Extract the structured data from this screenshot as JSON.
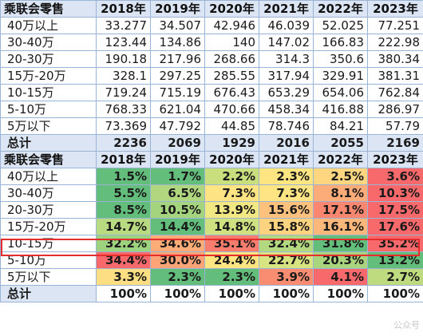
{
  "table1": {
    "header": [
      "乘联会零售",
      "2018年",
      "2019年",
      "2020年",
      "2021年",
      "2022年",
      "2023年"
    ],
    "rows": [
      {
        "label": "40万以上",
        "values": [
          "33.277",
          "34.507",
          "42.946",
          "46.039",
          "52.025",
          "77.251"
        ]
      },
      {
        "label": "30-40万",
        "values": [
          "123.44",
          "134.86",
          "140",
          "147.02",
          "166.83",
          "222.98"
        ]
      },
      {
        "label": "20-30万",
        "values": [
          "190.18",
          "217.96",
          "268.66",
          "314.3",
          "350.6",
          "380.34"
        ]
      },
      {
        "label": "15万-20万",
        "values": [
          "328.1",
          "297.25",
          "285.55",
          "317.94",
          "329.91",
          "381.31"
        ]
      },
      {
        "label": "10-15万",
        "values": [
          "719.24",
          "715.19",
          "676.43",
          "653.29",
          "654.06",
          "762.84"
        ]
      },
      {
        "label": "5-10万",
        "values": [
          "768.33",
          "621.04",
          "470.66",
          "458.34",
          "416.88",
          "286.97"
        ]
      },
      {
        "label": "5万以下",
        "values": [
          "73.369",
          "47.792",
          "44.85",
          "78.746",
          "84.21",
          "57.79"
        ]
      }
    ],
    "total": {
      "label": "总计",
      "values": [
        "2236",
        "2069",
        "1929",
        "2016",
        "2055",
        "2169"
      ]
    }
  },
  "table2": {
    "header": [
      "乘联会零售",
      "2018年",
      "2019年",
      "2020年",
      "2021年",
      "2022年",
      "2023年"
    ],
    "rows": [
      {
        "label": "40万以上",
        "values": [
          "1.5%",
          "1.7%",
          "2.2%",
          "2.3%",
          "2.5%",
          "3.6%"
        ],
        "colors": [
          "#63be7b",
          "#63be7b",
          "#c9df7e",
          "#fde582",
          "#fed680",
          "#f8696b"
        ]
      },
      {
        "label": "30-40万",
        "values": [
          "5.5%",
          "6.5%",
          "7.3%",
          "7.3%",
          "8.1%",
          "10.3%"
        ],
        "colors": [
          "#63be7b",
          "#b0d77f",
          "#fee482",
          "#fee482",
          "#fcac78",
          "#f8696b"
        ]
      },
      {
        "label": "20-30万",
        "values": [
          "8.5%",
          "10.5%",
          "13.9%",
          "15.6%",
          "17.1%",
          "17.5%"
        ],
        "colors": [
          "#63be7b",
          "#a5d47f",
          "#f2e883",
          "#fcc17c",
          "#f98770",
          "#f8696b"
        ]
      },
      {
        "label": "15万-20万",
        "values": [
          "14.7%",
          "14.4%",
          "14.8%",
          "15.8%",
          "16.1%",
          "17.6%"
        ],
        "colors": [
          "#b8da80",
          "#63be7b",
          "#cfe181",
          "#fed380",
          "#fcb87a",
          "#f8696b"
        ]
      },
      {
        "label": "10-15万",
        "values": [
          "32.2%",
          "34.6%",
          "35.1%",
          "32.4%",
          "31.8%",
          "35.2%"
        ],
        "colors": [
          "#9dd27f",
          "#fbac77",
          "#f87d6e",
          "#b3d980",
          "#63be7b",
          "#f8696b"
        ]
      },
      {
        "label": "5-10万",
        "values": [
          "34.4%",
          "30.0%",
          "24.4%",
          "22.7%",
          "20.3%",
          "13.2%"
        ],
        "colors": [
          "#f8696b",
          "#fca477",
          "#fee582",
          "#d8e381",
          "#a9d57f",
          "#63be7b"
        ]
      },
      {
        "label": "5万以下",
        "values": [
          "3.3%",
          "2.3%",
          "2.3%",
          "3.9%",
          "4.1%",
          "2.7%"
        ],
        "colors": [
          "#fede82",
          "#63be7b",
          "#63be7b",
          "#f98d72",
          "#f8696b",
          "#bedb80"
        ]
      }
    ],
    "total": {
      "label": "总计",
      "values": [
        "100%",
        "100%",
        "100%",
        "100%",
        "100%",
        "100%"
      ]
    }
  },
  "colors": {
    "header_bg": "#dbe5f3",
    "border": "#9bb3d4",
    "highlight_border": "#e52d2d",
    "scale_low": "#63be7b",
    "scale_mid": "#ffeb84",
    "scale_high": "#f8696b"
  },
  "watermark": "公众号"
}
